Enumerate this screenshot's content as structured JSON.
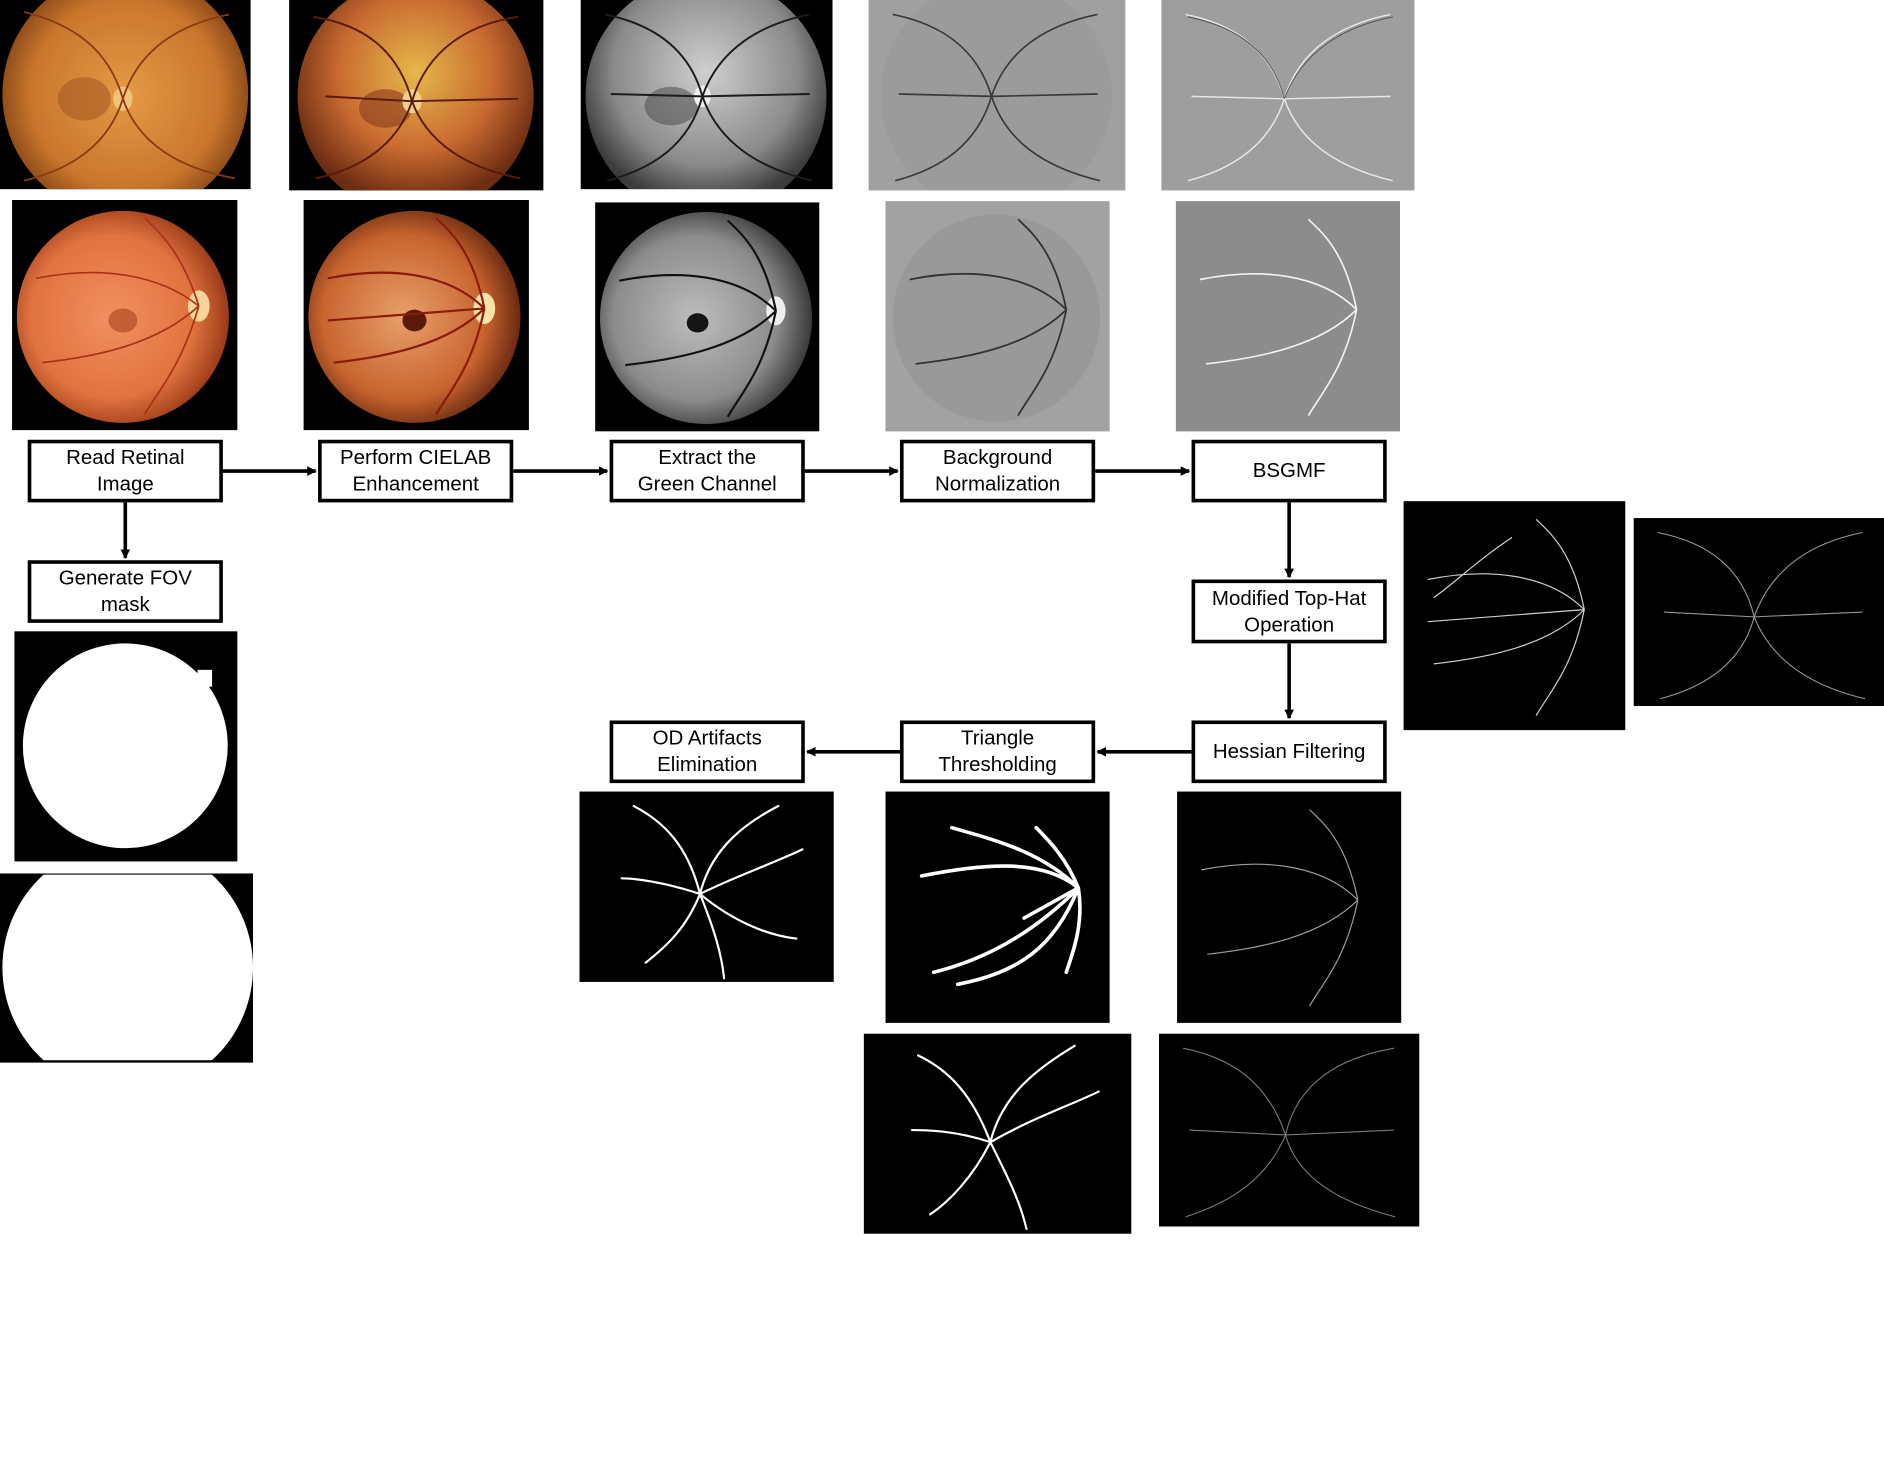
{
  "steps": {
    "read": "Read Retinal\nImage",
    "cielab": "Perform CIELAB\nEnhancement",
    "green": "Extract the\nGreen Channel",
    "bgnorm": "Background\nNormalization",
    "bsgmf": "BSGMF",
    "fov": "Generate FOV\nmask",
    "tophat": "Modified Top-Hat\nOperation",
    "hessian": "Hessian Filtering",
    "triangle": "Triangle\nThresholding",
    "od": "OD Artifacts\nElimination"
  },
  "colors": {
    "fundus_raw": "#d9822f",
    "fundus_enhanced": "#c25a2a",
    "gray_bg": "#8a8a8a",
    "black": "#000000",
    "white": "#ffffff"
  }
}
